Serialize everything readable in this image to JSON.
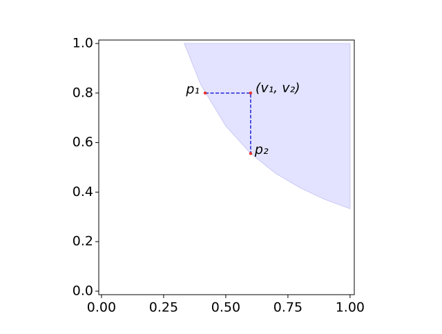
{
  "chart_data": {
    "type": "scatter",
    "xlim": [
      -0.011,
      1.017
    ],
    "ylim": [
      -0.014,
      1.014
    ],
    "xticks": [
      {
        "value": 0,
        "label": "0.00"
      },
      {
        "value": 0.25,
        "label": "0.25"
      },
      {
        "value": 0.5,
        "label": "0.50"
      },
      {
        "value": 0.75,
        "label": "0.75"
      },
      {
        "value": 1,
        "label": "1.00"
      }
    ],
    "yticks": [
      {
        "value": 0,
        "label": "0.0"
      },
      {
        "value": 0.2,
        "label": "0.2"
      },
      {
        "value": 0.4,
        "label": "0.4"
      },
      {
        "value": 0.6,
        "label": "0.6"
      },
      {
        "value": 0.8,
        "label": "0.8"
      },
      {
        "value": 1,
        "label": "1.0"
      }
    ],
    "region": {
      "color": "#e3e3ff",
      "edge_color": "#c8c8f4",
      "x": [
        0.333,
        0.4,
        0.5,
        0.6,
        0.7,
        0.8,
        0.9,
        1.0,
        1.0
      ],
      "y": [
        1.0,
        0.833,
        0.667,
        0.556,
        0.476,
        0.417,
        0.37,
        0.333,
        1.0
      ]
    },
    "points": {
      "color": "#e8302a",
      "line_color": "#1f1fd6",
      "labels": [
        "p₁",
        "(v₁, v₂)",
        "p₂"
      ],
      "x": [
        0.417,
        0.6,
        0.6
      ],
      "y": [
        0.8,
        0.8,
        0.556
      ]
    }
  }
}
